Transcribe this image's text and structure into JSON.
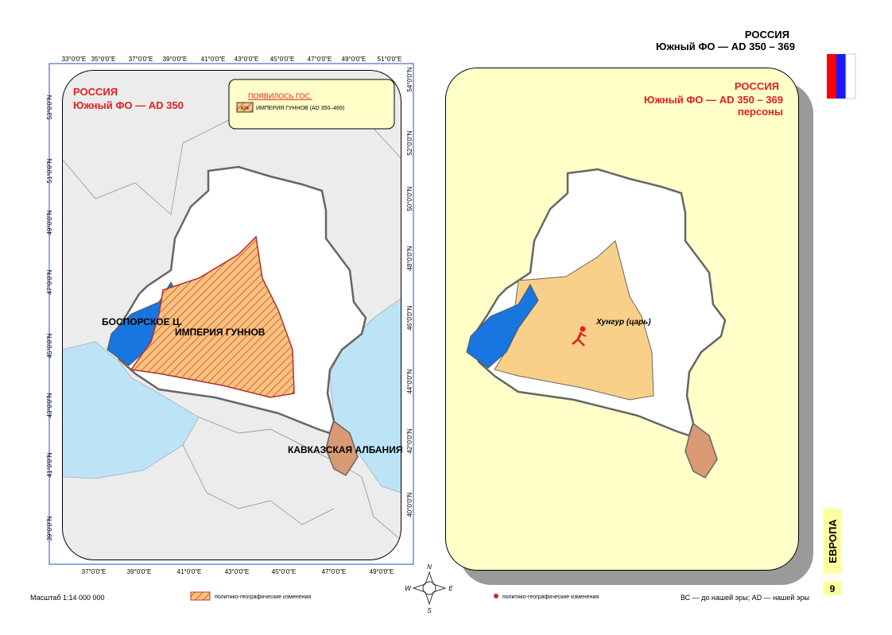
{
  "header": {
    "title": "РОССИЯ",
    "subtitle": "Южный ФО — AD 350 – 369"
  },
  "left_map": {
    "title": "РОССИЯ",
    "subtitle": "Южный ФО — AD 350",
    "legend": {
      "heading": "ПОЯВИЛОСЬ ГОС.",
      "code": "624",
      "label": "ИМПЕРИЯ ГУННОВ (AD 350–469)"
    },
    "labels": [
      "БОСПОРСКОЕ Ц.",
      "ИМПЕРИЯ ГУННОВ",
      "КАВКАЗСКАЯ АЛБАНИЯ"
    ],
    "top_ticks": [
      "33°0'0\"E",
      "35°0'0\"E",
      "37°0'0\"E",
      "39°0'0\"E",
      "41°0'0\"E",
      "43°0'0\"E",
      "45°0'0\"E",
      "47°0'0\"E",
      "49°0'0\"E",
      "51°0'0\"E"
    ],
    "bottom_ticks": [
      "37°0'0\"E",
      "39°0'0\"E",
      "41°0'0\"E",
      "43°0'0\"E",
      "45°0'0\"E",
      "47°0'0\"E",
      "49°0'0\"E"
    ],
    "left_ticks": [
      "53°0'0\"N",
      "51°0'0\"N",
      "49°0'0\"N",
      "47°0'0\"N",
      "45°0'0\"N",
      "43°0'0\"N",
      "41°0'0\"N",
      "39°0'0\"N"
    ],
    "right_ticks": [
      "54°0'0\"N",
      "52°0'0\"N",
      "50°0'0\"N",
      "48°0'0\"N",
      "46°0'0\"N",
      "44°0'0\"N",
      "42°0'0\"N",
      "40°0'0\"N"
    ]
  },
  "right_map": {
    "title": "РОССИЯ",
    "subtitle": "Южный ФО — AD 350 – 369",
    "note": "персоны",
    "person": "Хунгур (царь)"
  },
  "compass": [
    "N",
    "E",
    "S",
    "W"
  ],
  "footer": {
    "scale": "Масштаб 1:14 000 000",
    "left_legend": "политико-географические изменения",
    "right_legend": "политико-географические изменения",
    "era_note": "ВС — до нашей эры; AD — нашей эры"
  },
  "side_tab": {
    "section": "ЕВРОПА",
    "page": "9"
  }
}
